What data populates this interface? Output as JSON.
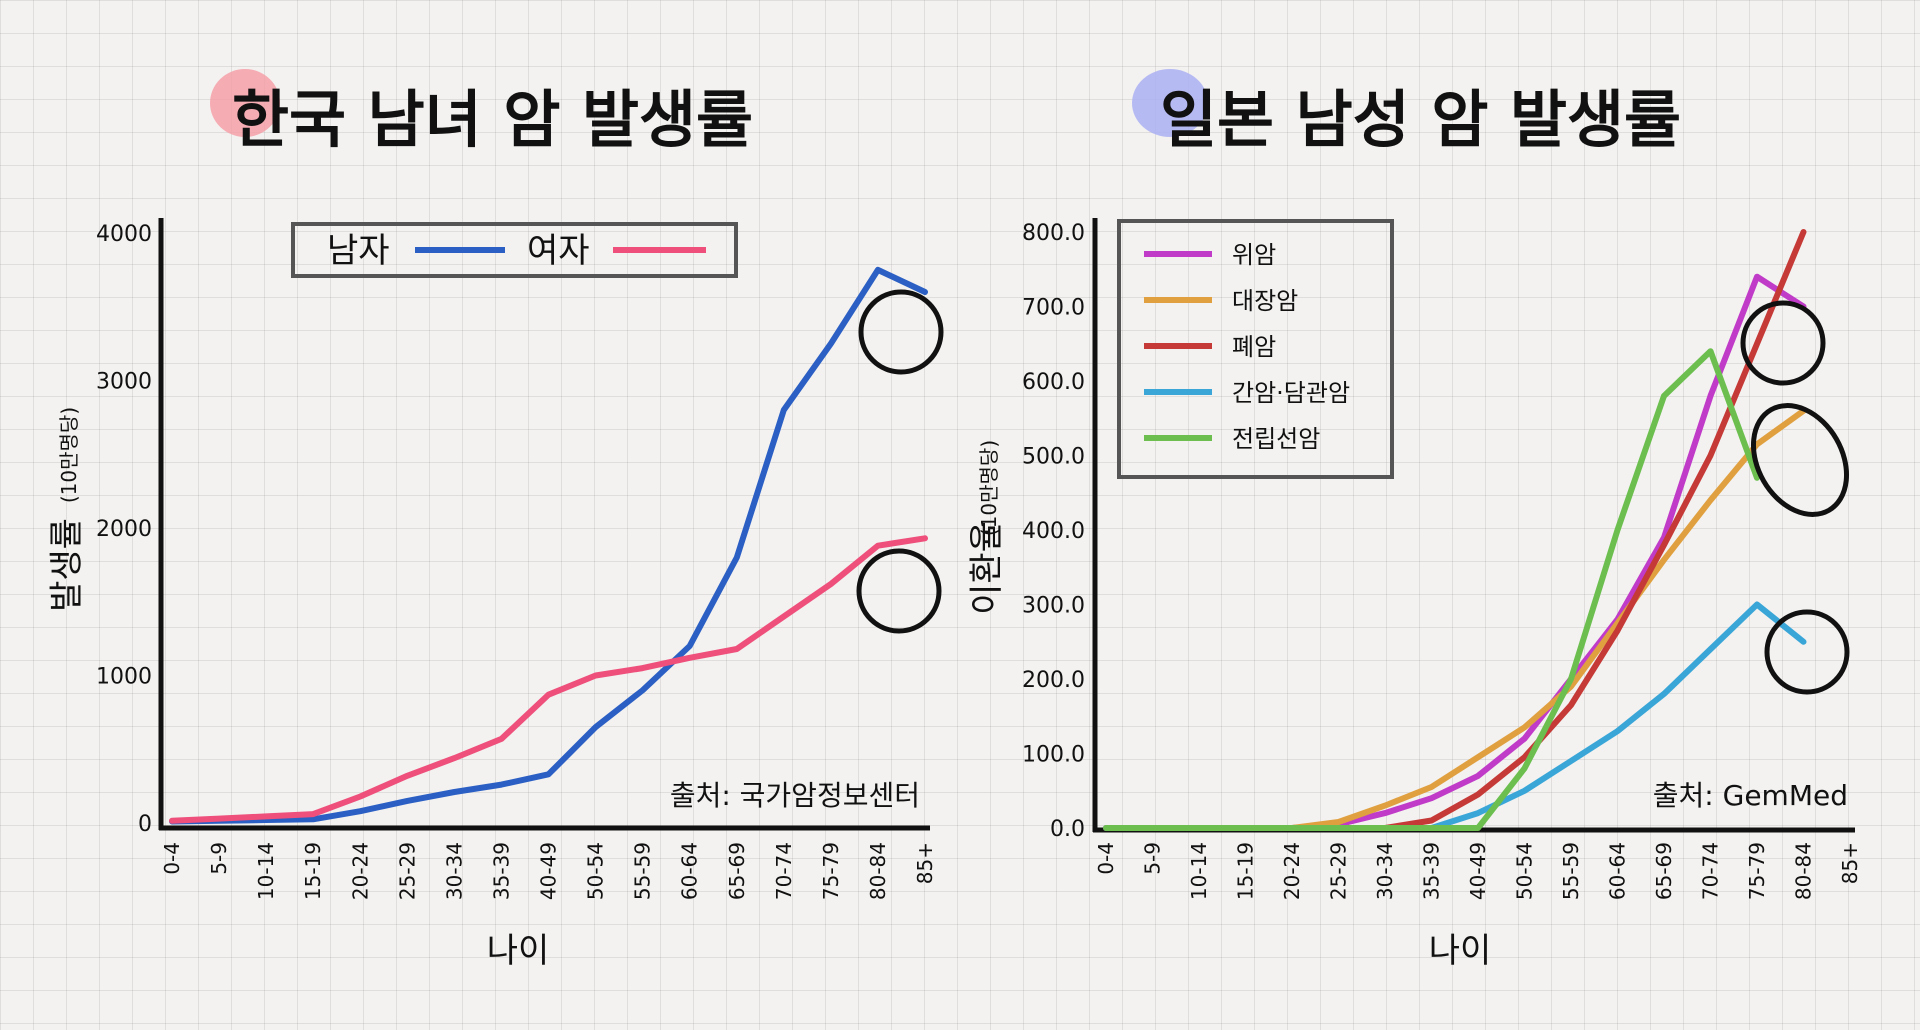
{
  "chart_data": [
    {
      "type": "line",
      "title": "한국 남녀 암 발생률",
      "ylabel": "발생률",
      "ylabel_unit": "(10만명당)",
      "xlabel": "나이",
      "source": "출처: 국가암정보센터",
      "categories": [
        "0-4",
        "5-9",
        "10-14",
        "15-19",
        "20-24",
        "25-29",
        "30-34",
        "35-39",
        "40-49",
        "50-54",
        "55-59",
        "60-64",
        "65-69",
        "70-74",
        "75-79",
        "80-84",
        "85+"
      ],
      "y_ticks": [
        "0",
        "1000",
        "2000",
        "3000",
        "4000"
      ],
      "ylim": [
        0,
        4000
      ],
      "legend": [
        "남자",
        "여자"
      ],
      "series": [
        {
          "name": "남자",
          "color": "#2b5fc4",
          "values": [
            10,
            15,
            20,
            25,
            80,
            150,
            210,
            260,
            330,
            650,
            900,
            1200,
            1800,
            2800,
            3250,
            3750,
            3600
          ]
        },
        {
          "name": "여자",
          "color": "#ee4f7b",
          "values": [
            15,
            30,
            45,
            60,
            180,
            320,
            440,
            570,
            870,
            1000,
            1050,
            1120,
            1180,
            1400,
            1620,
            1880,
            1930
          ]
        }
      ],
      "highlights": [
        "80-84 남자",
        "80-84 여자"
      ]
    },
    {
      "type": "line",
      "title": "일본 남성 암 발생률",
      "ylabel": "이환율",
      "ylabel_unit": "(10만명당)",
      "xlabel": "나이",
      "source": "출처: GemMed",
      "categories": [
        "0-4",
        "5-9",
        "10-14",
        "15-19",
        "20-24",
        "25-29",
        "30-34",
        "35-39",
        "40-49",
        "50-54",
        "55-59",
        "60-64",
        "65-69",
        "70-74",
        "75-79",
        "80-84",
        "85+"
      ],
      "y_ticks": [
        "0.0",
        "100.0",
        "200.0",
        "300.0",
        "400.0",
        "500.0",
        "600.0",
        "700.0",
        "800.0"
      ],
      "ylim": [
        0,
        800
      ],
      "legend": [
        "위암",
        "대장암",
        "폐암",
        "간암·담관암",
        "전립선암"
      ],
      "series": [
        {
          "name": "위암",
          "color": "#c03bc8",
          "values": [
            0,
            0,
            0,
            0,
            0,
            5,
            20,
            40,
            70,
            120,
            200,
            280,
            390,
            580,
            740,
            700,
            null
          ]
        },
        {
          "name": "대장암",
          "color": "#e0a040",
          "values": [
            0,
            0,
            0,
            0,
            0,
            8,
            30,
            55,
            95,
            135,
            190,
            275,
            360,
            440,
            515,
            560,
            null
          ]
        },
        {
          "name": "폐암",
          "color": "#c53a37",
          "values": [
            0,
            0,
            0,
            0,
            0,
            0,
            0,
            10,
            45,
            95,
            165,
            265,
            380,
            500,
            650,
            800,
            null
          ]
        },
        {
          "name": "간암·담관암",
          "color": "#3aa6d8",
          "values": [
            0,
            0,
            0,
            0,
            0,
            0,
            0,
            0,
            20,
            50,
            90,
            130,
            180,
            240,
            300,
            250,
            null
          ]
        },
        {
          "name": "전립선암",
          "color": "#6cbf4f",
          "values": [
            0,
            0,
            0,
            0,
            0,
            0,
            0,
            0,
            0,
            80,
            200,
            400,
            580,
            640,
            470,
            null,
            null
          ]
        }
      ],
      "highlights": [
        "75-79 위암",
        "80-84 대장암/전립선암",
        "80-84 간암·담관암"
      ]
    }
  ],
  "colors": {
    "left_blob": "#f4a0a8",
    "right_blob": "#aab0f2",
    "axis": "#111111",
    "legend_border": "#555555"
  }
}
